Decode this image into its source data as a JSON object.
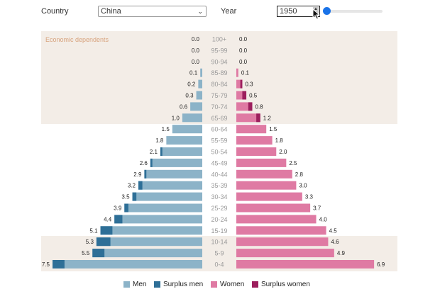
{
  "controls": {
    "country_label": "Country",
    "country_value": "China",
    "year_label": "Year",
    "year_value": "1950",
    "year_min": 1950,
    "year_max": 2100
  },
  "annotation": {
    "dependents_label": "Economic dependents"
  },
  "colors": {
    "men": "#8cb3c8",
    "surplus_men": "#2e6f97",
    "women": "#df7aa3",
    "surplus_women": "#9c1f5d",
    "band": "#f3ede7",
    "age_label": "#999999"
  },
  "chart_data": {
    "type": "bar",
    "title": "",
    "xlabel": "",
    "ylabel": "",
    "orientation": "horizontal-diverging",
    "xlim": [
      0,
      7.5
    ],
    "categories": [
      "100+",
      "95-99",
      "90-94",
      "85-89",
      "80-84",
      "75-79",
      "70-74",
      "65-69",
      "60-64",
      "55-59",
      "50-54",
      "45-49",
      "40-44",
      "35-39",
      "30-34",
      "25-29",
      "20-24",
      "15-19",
      "10-14",
      "5-9",
      "0-4"
    ],
    "series": [
      {
        "name": "Men",
        "values": [
          0.0,
          0.0,
          0.0,
          0.1,
          0.2,
          0.3,
          0.6,
          1.0,
          1.5,
          1.8,
          2.1,
          2.6,
          2.9,
          3.2,
          3.5,
          3.9,
          4.4,
          5.1,
          5.3,
          5.5,
          7.5
        ]
      },
      {
        "name": "Women",
        "values": [
          0.0,
          0.0,
          0.0,
          0.1,
          0.3,
          0.5,
          0.8,
          1.2,
          1.5,
          1.8,
          2.0,
          2.5,
          2.8,
          3.0,
          3.3,
          3.7,
          4.0,
          4.5,
          4.6,
          4.9,
          6.9
        ]
      }
    ],
    "dependent_groups": [
      "100+",
      "95-99",
      "90-94",
      "85-89",
      "80-84",
      "75-79",
      "70-74",
      "65-69",
      "10-14",
      "5-9",
      "0-4"
    ],
    "legend": [
      "Men",
      "Surplus men",
      "Women",
      "Surplus women"
    ]
  }
}
